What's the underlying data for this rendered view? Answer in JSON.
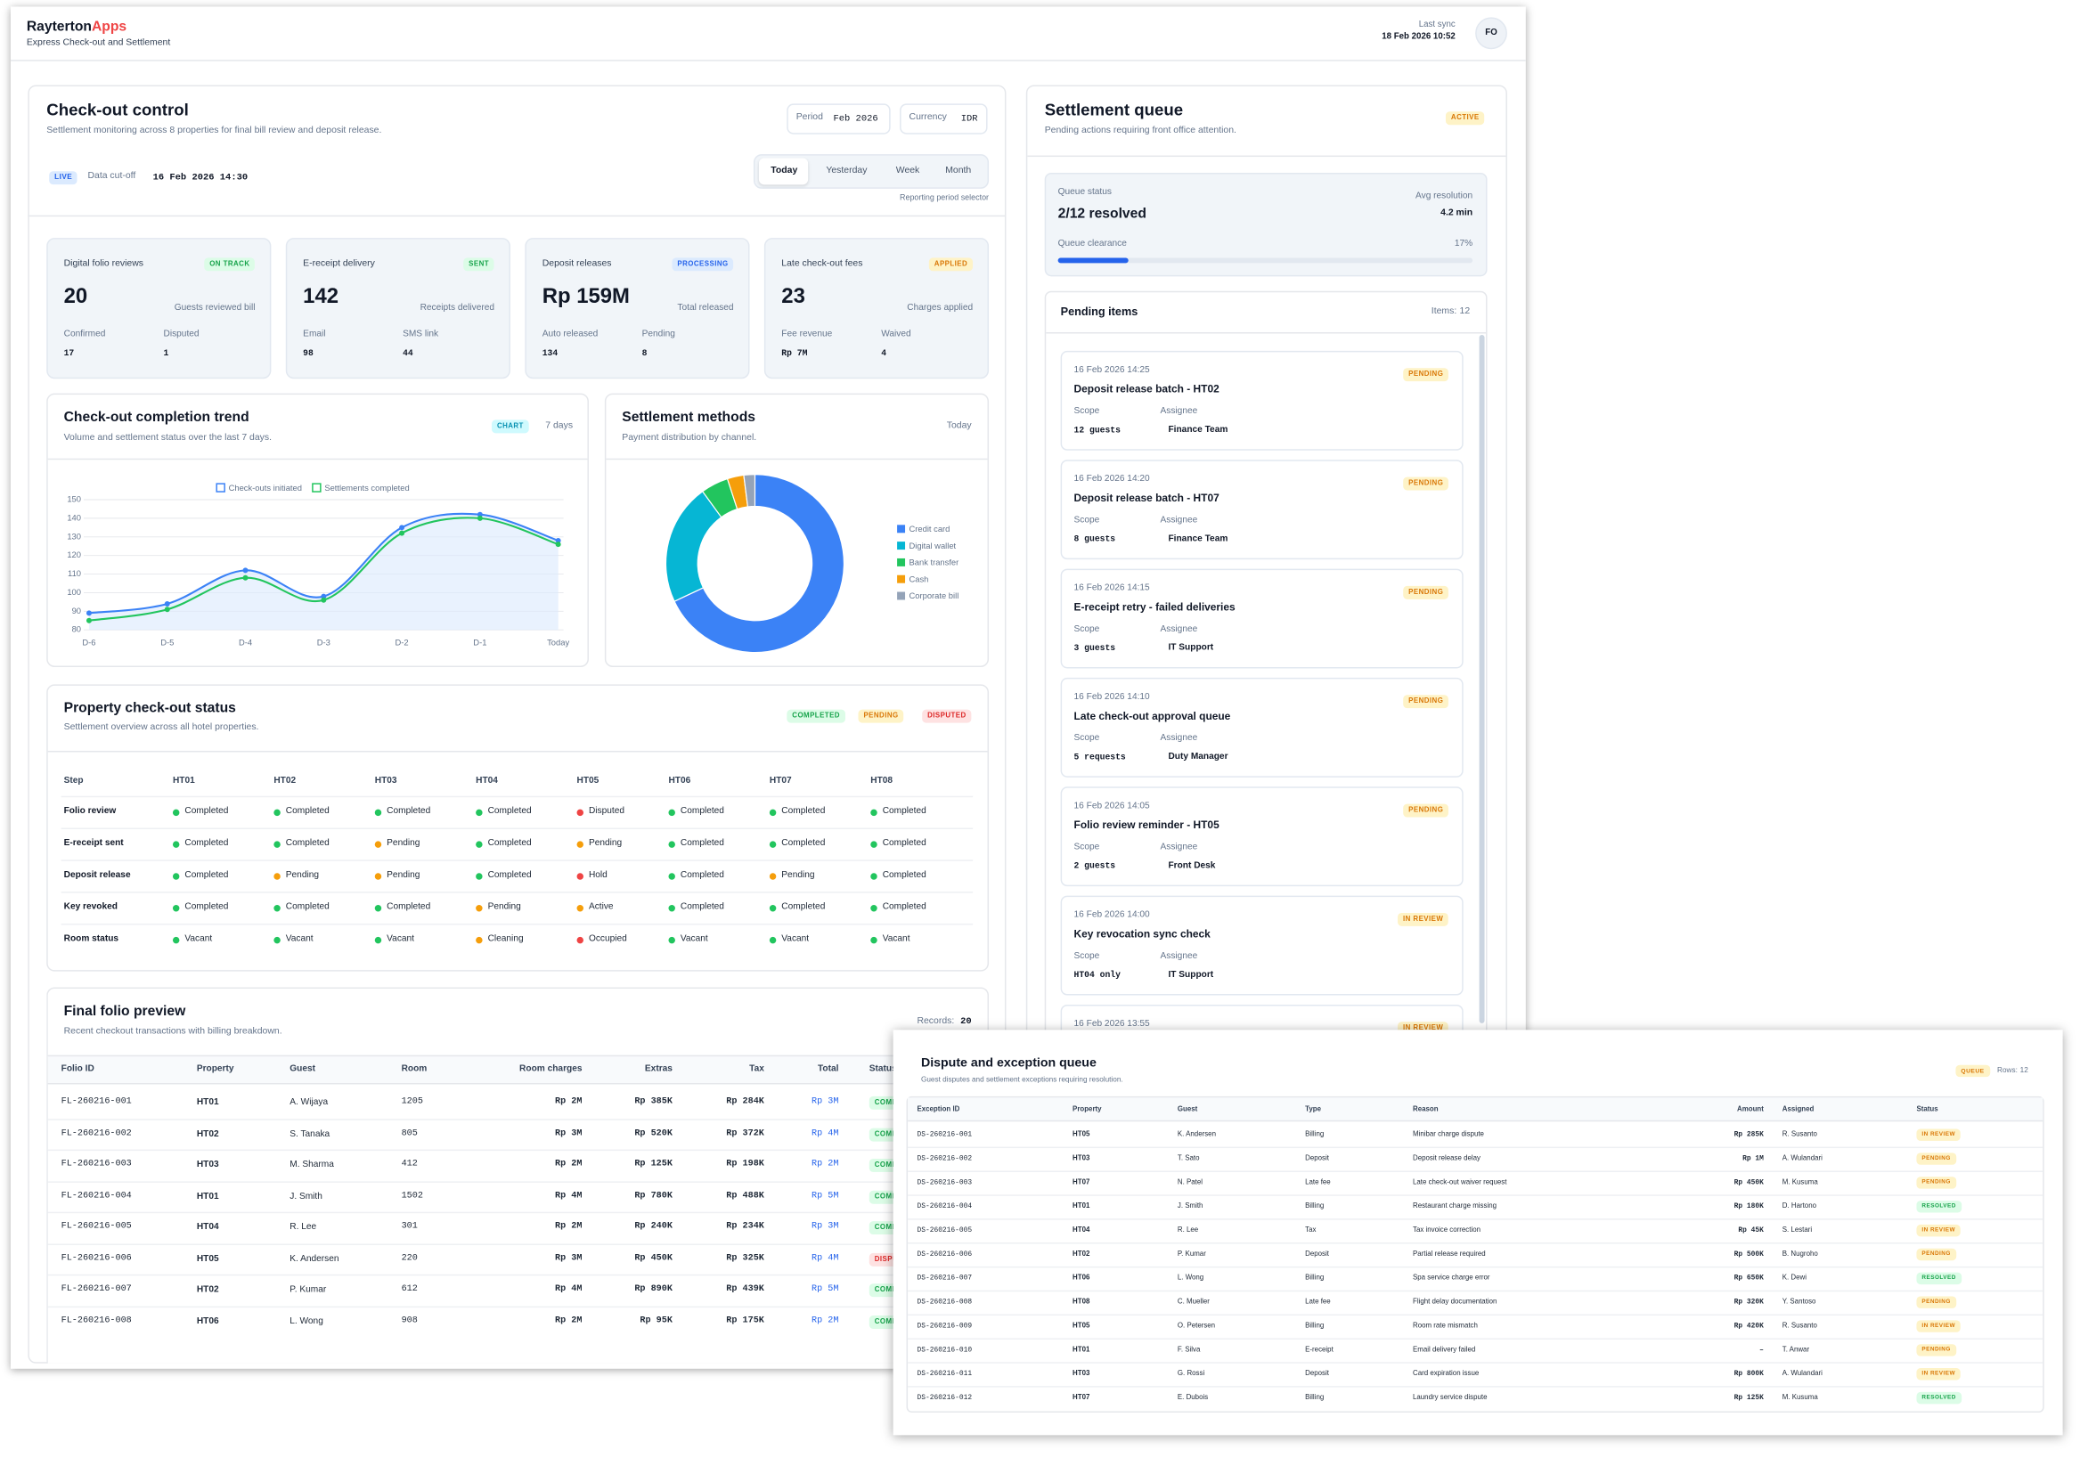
{
  "header": {
    "brand": "Rayterton",
    "brand_accent": "Apps",
    "subtitle": "Express Check-out and Settlement",
    "sync_label": "Last sync",
    "sync_time": "18 Feb 2026 10:52",
    "avatar": "FO"
  },
  "control": {
    "title": "Check-out control",
    "subtitle": "Settlement monitoring across 8 properties for final bill review and deposit release.",
    "period_label": "Period",
    "period": "Feb 2026",
    "currency_label": "Currency",
    "currency": "IDR",
    "live": "LIVE",
    "cutoff_label": "Data cut-off",
    "cutoff": "16 Feb 2026 14:30",
    "tabs": [
      "Today",
      "Yesterday",
      "Week",
      "Month"
    ],
    "tabs_caption": "Reporting period selector"
  },
  "kpis": [
    {
      "title": "Digital folio reviews",
      "badge": "ON TRACK",
      "value": 20,
      "value_label": "Guests reviewed bill",
      "stats": [
        {
          "label": "Confirmed",
          "value": 17
        },
        {
          "label": "Disputed",
          "value": 1
        }
      ]
    },
    {
      "title": "E-receipt delivery",
      "badge": "SENT",
      "value": 142,
      "value_label": "Receipts delivered",
      "stats": [
        {
          "label": "Email",
          "value": 98
        },
        {
          "label": "SMS link",
          "value": 44
        }
      ]
    },
    {
      "title": "Deposit releases",
      "badge": "PROCESSING",
      "value": "Rp 159M",
      "value_label": "Total released",
      "stats": [
        {
          "label": "Auto released",
          "value": 134
        },
        {
          "label": "Pending",
          "value": 8
        }
      ]
    },
    {
      "title": "Late check-out fees",
      "badge": "APPLIED",
      "value": 23,
      "value_label": "Charges applied",
      "stats": [
        {
          "label": "Fee revenue",
          "value": "Rp 7M"
        },
        {
          "label": "Waived",
          "value": 4
        }
      ]
    }
  ],
  "chart_data": [
    {
      "type": "line",
      "title": "Check-out completion trend",
      "subtitle": "Volume and settlement status over the last 7 days.",
      "badge": "CHART",
      "period": "7 days",
      "categories": [
        "D-6",
        "D-5",
        "D-4",
        "D-3",
        "D-2",
        "D-1",
        "Today"
      ],
      "ylim": [
        80,
        150
      ],
      "yticks": [
        80,
        90,
        100,
        110,
        120,
        130,
        140,
        150
      ],
      "grid": true,
      "series": [
        {
          "name": "Check-outs initiated",
          "color": "#3b82f6",
          "values": [
            89,
            94,
            112,
            98,
            135,
            142,
            128
          ]
        },
        {
          "name": "Settlements completed",
          "color": "#22c55e",
          "values": [
            85,
            91,
            108,
            96,
            132,
            140,
            126
          ]
        }
      ]
    },
    {
      "type": "pie",
      "title": "Settlement methods",
      "subtitle": "Payment distribution by channel.",
      "period": "Today",
      "categories": [
        "Credit card",
        "Digital wallet",
        "Bank transfer",
        "Cash",
        "Corporate bill"
      ],
      "values": [
        68,
        22,
        5,
        3,
        2
      ],
      "colors": [
        "#3b82f6",
        "#06b6d4",
        "#22c55e",
        "#f59e0b",
        "#94a3b8"
      ]
    }
  ],
  "status": {
    "title": "Property check-out status",
    "subtitle": "Settlement overview across all hotel properties.",
    "badges": [
      "COMPLETED",
      "PENDING",
      "DISPUTED"
    ],
    "header": [
      "Step",
      "HT01",
      "HT02",
      "HT03",
      "HT04",
      "HT05",
      "HT06",
      "HT07",
      "HT08"
    ],
    "rows": [
      {
        "step": "Folio review",
        "cells": [
          "Completed",
          "Completed",
          "Completed",
          "Completed",
          "Disputed",
          "Completed",
          "Completed",
          "Completed"
        ]
      },
      {
        "step": "E-receipt sent",
        "cells": [
          "Completed",
          "Completed",
          "Pending",
          "Completed",
          "Pending",
          "Completed",
          "Completed",
          "Completed"
        ]
      },
      {
        "step": "Deposit release",
        "cells": [
          "Completed",
          "Pending",
          "Pending",
          "Completed",
          "Hold",
          "Completed",
          "Pending",
          "Completed"
        ]
      },
      {
        "step": "Key revoked",
        "cells": [
          "Completed",
          "Completed",
          "Completed",
          "Pending",
          "Active",
          "Completed",
          "Completed",
          "Completed"
        ]
      },
      {
        "step": "Room status",
        "cells": [
          "Vacant",
          "Vacant",
          "Vacant",
          "Cleaning",
          "Occupied",
          "Vacant",
          "Vacant",
          "Vacant"
        ]
      }
    ]
  },
  "folio": {
    "title": "Final folio preview",
    "subtitle": "Recent checkout transactions with billing breakdown.",
    "records_label": "Records:",
    "records": 20,
    "header": [
      "Folio ID",
      "Property",
      "Guest",
      "Room",
      "Room charges",
      "Extras",
      "Tax",
      "Total",
      "Status"
    ],
    "rows": [
      [
        "FL-260216-001",
        "HT01",
        "A. Wijaya",
        "1205",
        "Rp 2M",
        "Rp 385K",
        "Rp 284K",
        "Rp 3M",
        "COMPLETED"
      ],
      [
        "FL-260216-002",
        "HT02",
        "S. Tanaka",
        "805",
        "Rp 3M",
        "Rp 520K",
        "Rp 372K",
        "Rp 4M",
        "COMPLETED"
      ],
      [
        "FL-260216-003",
        "HT03",
        "M. Sharma",
        "412",
        "Rp 2M",
        "Rp 125K",
        "Rp 198K",
        "Rp 2M",
        "COMPLETED"
      ],
      [
        "FL-260216-004",
        "HT01",
        "J. Smith",
        "1502",
        "Rp 4M",
        "Rp 780K",
        "Rp 488K",
        "Rp 5M",
        "COMPLETED"
      ],
      [
        "FL-260216-005",
        "HT04",
        "R. Lee",
        "301",
        "Rp 2M",
        "Rp 240K",
        "Rp 234K",
        "Rp 3M",
        "COMPLETED"
      ],
      [
        "FL-260216-006",
        "HT05",
        "K. Andersen",
        "220",
        "Rp 3M",
        "Rp 450K",
        "Rp 325K",
        "Rp 4M",
        "DISPUTED"
      ],
      [
        "FL-260216-007",
        "HT02",
        "P. Kumar",
        "612",
        "Rp 4M",
        "Rp 890K",
        "Rp 439K",
        "Rp 5M",
        "COMPLETED"
      ],
      [
        "FL-260216-008",
        "HT06",
        "L. Wong",
        "908",
        "Rp 2M",
        "Rp 95K",
        "Rp 175K",
        "Rp 2M",
        "COMPLETED"
      ]
    ]
  },
  "queue": {
    "title": "Settlement queue",
    "badge": "ACTIVE",
    "subtitle": "Pending actions requiring front office attention.",
    "status_label": "Queue status",
    "status": "2/12 resolved",
    "avg_label": "Avg resolution",
    "avg": "4.2 min",
    "clearance_label": "Queue clearance",
    "clearance": 17,
    "clearance_text": "17%",
    "pending_title": "Pending items",
    "items_label": "Items:",
    "items_count": 12,
    "items": [
      {
        "time": "16 Feb 2026 14:25",
        "title": "Deposit release batch - HT02",
        "status": "PENDING",
        "scope_label": "Scope",
        "scope": "12 guests",
        "assignee_label": "Assignee",
        "assignee": "Finance Team"
      },
      {
        "time": "16 Feb 2026 14:20",
        "title": "Deposit release batch - HT07",
        "status": "PENDING",
        "scope_label": "Scope",
        "scope": "8 guests",
        "assignee_label": "Assignee",
        "assignee": "Finance Team"
      },
      {
        "time": "16 Feb 2026 14:15",
        "title": "E-receipt retry - failed deliveries",
        "status": "PENDING",
        "scope_label": "Scope",
        "scope": "3 guests",
        "assignee_label": "Assignee",
        "assignee": "IT Support"
      },
      {
        "time": "16 Feb 2026 14:10",
        "title": "Late check-out approval queue",
        "status": "PENDING",
        "scope_label": "Scope",
        "scope": "5 requests",
        "assignee_label": "Assignee",
        "assignee": "Duty Manager"
      },
      {
        "time": "16 Feb 2026 14:05",
        "title": "Folio review reminder - HT05",
        "status": "PENDING",
        "scope_label": "Scope",
        "scope": "2 guests",
        "assignee_label": "Assignee",
        "assignee": "Front Desk"
      },
      {
        "time": "16 Feb 2026 14:00",
        "title": "Key revocation sync check",
        "status": "IN REVIEW",
        "scope_label": "Scope",
        "scope": "HT04 only",
        "assignee_label": "Assignee",
        "assignee": "IT Support"
      },
      {
        "time": "16 Feb 2026 13:55",
        "status": "IN REVIEW"
      }
    ]
  },
  "disputes": {
    "title": "Dispute and exception queue",
    "subtitle": "Guest disputes and settlement exceptions requiring resolution.",
    "badge": "QUEUE",
    "rows_label": "Rows:",
    "rows_count": 12,
    "header": [
      "Exception ID",
      "Property",
      "Guest",
      "Type",
      "Reason",
      "Amount",
      "Assigned",
      "Status"
    ],
    "rows": [
      [
        "DS-260216-001",
        "HT05",
        "K. Andersen",
        "Billing",
        "Minibar charge dispute",
        "Rp 285K",
        "R. Susanto",
        "IN REVIEW"
      ],
      [
        "DS-260216-002",
        "HT03",
        "T. Sato",
        "Deposit",
        "Deposit release delay",
        "Rp 1M",
        "A. Wulandari",
        "PENDING"
      ],
      [
        "DS-260216-003",
        "HT07",
        "N. Patel",
        "Late fee",
        "Late check-out waiver request",
        "Rp 450K",
        "M. Kusuma",
        "PENDING"
      ],
      [
        "DS-260216-004",
        "HT01",
        "J. Smith",
        "Billing",
        "Restaurant charge missing",
        "Rp 180K",
        "D. Hartono",
        "RESOLVED"
      ],
      [
        "DS-260216-005",
        "HT04",
        "R. Lee",
        "Tax",
        "Tax invoice correction",
        "Rp 45K",
        "S. Lestari",
        "IN REVIEW"
      ],
      [
        "DS-260216-006",
        "HT02",
        "P. Kumar",
        "Deposit",
        "Partial release required",
        "Rp 500K",
        "B. Nugroho",
        "PENDING"
      ],
      [
        "DS-260216-007",
        "HT06",
        "L. Wong",
        "Billing",
        "Spa service charge error",
        "Rp 650K",
        "K. Dewi",
        "RESOLVED"
      ],
      [
        "DS-260216-008",
        "HT08",
        "C. Mueller",
        "Late fee",
        "Flight delay documentation",
        "Rp 320K",
        "Y. Santoso",
        "PENDING"
      ],
      [
        "DS-260216-009",
        "HT05",
        "O. Petersen",
        "Billing",
        "Room rate mismatch",
        "Rp 420K",
        "R. Susanto",
        "IN REVIEW"
      ],
      [
        "DS-260216-010",
        "HT01",
        "F. Silva",
        "E-receipt",
        "Email delivery failed",
        "–",
        "T. Anwar",
        "PENDING"
      ],
      [
        "DS-260216-011",
        "HT03",
        "G. Rossi",
        "Deposit",
        "Card expiration issue",
        "Rp 800K",
        "A. Wulandari",
        "IN REVIEW"
      ],
      [
        "DS-260216-012",
        "HT07",
        "E. Dubois",
        "Billing",
        "Laundry service dispute",
        "Rp 125K",
        "M. Kusuma",
        "RESOLVED"
      ]
    ]
  },
  "tones": {
    "Completed": "green",
    "Vacant": "green",
    "Pending": "amber",
    "Cleaning": "amber",
    "Active": "amber",
    "Disputed": "red",
    "Hold": "red",
    "Occupied": "red",
    "ON TRACK": "green",
    "SENT": "green",
    "PROCESSING": "blue",
    "APPLIED": "amber",
    "LIVE": "blue",
    "CHART": "cyan",
    "COMPLETED": "green",
    "PENDING": "amber",
    "DISPUTED": "red",
    "ACTIVE": "amber",
    "IN REVIEW": "amber",
    "RESOLVED": "green",
    "QUEUE": "amber"
  }
}
